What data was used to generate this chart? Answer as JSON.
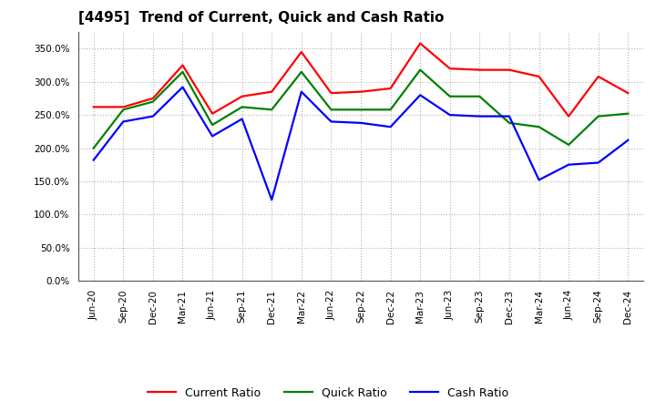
{
  "title": "[4495]  Trend of Current, Quick and Cash Ratio",
  "x_labels": [
    "Jun-20",
    "Sep-20",
    "Dec-20",
    "Mar-21",
    "Jun-21",
    "Sep-21",
    "Dec-21",
    "Mar-22",
    "Jun-22",
    "Sep-22",
    "Dec-22",
    "Mar-23",
    "Jun-23",
    "Sep-23",
    "Dec-23",
    "Mar-24",
    "Jun-24",
    "Sep-24",
    "Dec-24"
  ],
  "current_ratio": [
    262,
    262,
    275,
    325,
    252,
    278,
    285,
    345,
    283,
    285,
    290,
    358,
    320,
    318,
    318,
    308,
    248,
    308,
    283
  ],
  "quick_ratio": [
    200,
    258,
    270,
    315,
    235,
    262,
    258,
    315,
    258,
    258,
    258,
    318,
    278,
    278,
    238,
    232,
    205,
    248,
    252
  ],
  "cash_ratio": [
    182,
    240,
    248,
    292,
    218,
    244,
    122,
    285,
    240,
    238,
    232,
    280,
    250,
    248,
    248,
    152,
    175,
    178,
    212
  ],
  "ylim": [
    0,
    375
  ],
  "yticks": [
    0,
    50,
    100,
    150,
    200,
    250,
    300,
    350
  ],
  "current_color": "#FF0000",
  "quick_color": "#008000",
  "cash_color": "#0000FF",
  "line_width": 1.6,
  "background_color": "#FFFFFF",
  "grid_color": "#AAAAAA",
  "title_fontsize": 11,
  "tick_fontsize": 7.5,
  "legend_fontsize": 9
}
